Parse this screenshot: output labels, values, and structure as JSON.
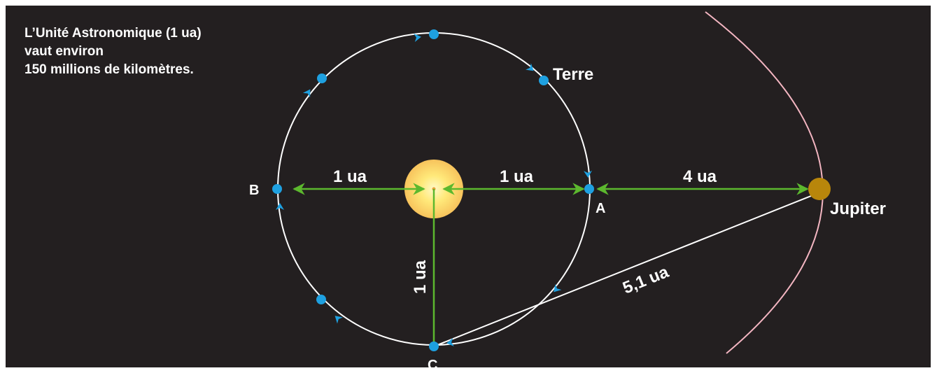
{
  "intro": {
    "line1": "L’Unité Astronomique (1 ua)",
    "line2": "vaut environ",
    "line3": "150 millions de kilomètres."
  },
  "labels": {
    "earth": "Terre",
    "jupiter": "Jupiter",
    "point_a": "A",
    "point_b": "B",
    "point_c": "C"
  },
  "distances": {
    "sun_to_b": "1 ua",
    "sun_to_a": "1 ua",
    "sun_to_c": "1 ua",
    "a_to_jupiter": "4 ua",
    "c_to_jupiter": "5,1 ua"
  },
  "colors": {
    "background": "#231f20",
    "orbit": "#ffffff",
    "jupiter_orbit": "#f4b6c2",
    "earth": "#1ea0e0",
    "jupiter": "#b8860b",
    "arrows": "#5cb82e",
    "sun_core": "#fff7c0",
    "sun_edge": "#f6c85a"
  }
}
